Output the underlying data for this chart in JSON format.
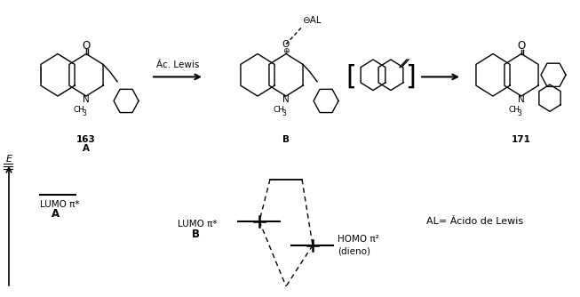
{
  "bg_color": "#ffffff",
  "font_size": 8,
  "lumo_a_label": "LUMO π*",
  "lumo_a_sublabel": "A",
  "lumo_b_label": "LUMO π*",
  "lumo_b_sublabel": "B",
  "homo_label": "HOMO π²",
  "homo_sublabel": "(dieno)",
  "al_label": "AL= Ácido de Lewis",
  "ac_lewis_label": "Ác. Lewis",
  "mol_a_label": "163",
  "mol_a_sublabel": "A",
  "mol_b_label": "B",
  "mol_prod_label": "171",
  "theta_label": "⊖AL",
  "oplus_label": "⊕"
}
